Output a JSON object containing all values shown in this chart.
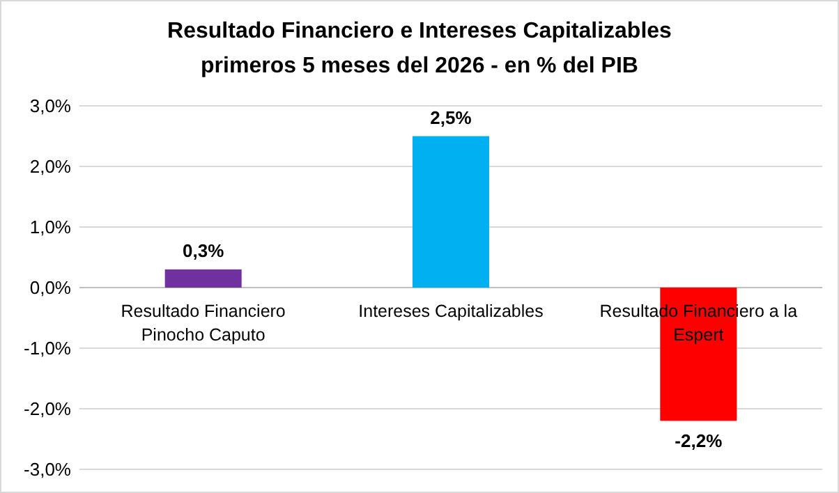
{
  "chart_data": {
    "type": "bar",
    "title": "Resultado Financiero e Intereses Capitalizables\nprimeros 5 meses del 2026 - en % del PIB",
    "categories": [
      "Resultado Financiero Pinocho Caputo",
      "Intereses Capitalizables",
      "Resultado Financiero a la Espert"
    ],
    "values": [
      0.3,
      2.5,
      -2.2
    ],
    "colors": [
      "#7030a0",
      "#00b0f0",
      "#ff0000"
    ],
    "value_labels": [
      "0,3%",
      "2,5%",
      "-2,2%"
    ],
    "ylim": [
      -3,
      3
    ],
    "yticks": [
      {
        "value": -3,
        "label": "-3,0%"
      },
      {
        "value": -2,
        "label": "-2,0%"
      },
      {
        "value": -1,
        "label": "-1,0%"
      },
      {
        "value": 0,
        "label": "0,0%"
      },
      {
        "value": 1,
        "label": "1,0%"
      },
      {
        "value": 2,
        "label": "2,0%"
      },
      {
        "value": 3,
        "label": "3,0%"
      }
    ],
    "grid": "y"
  }
}
